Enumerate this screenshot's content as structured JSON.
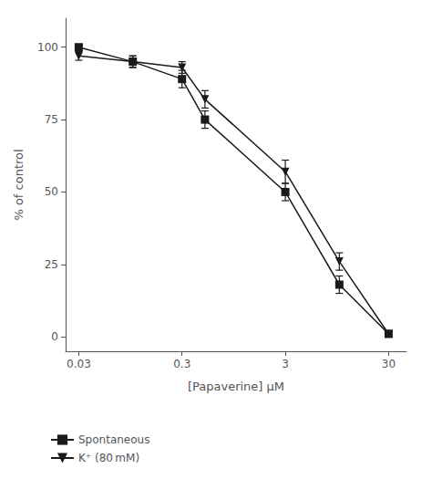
{
  "chart_data": {
    "type": "line",
    "xlabel": "[Papaverine] μM",
    "ylabel": "% of control",
    "log": "x",
    "xlim": [
      0.0223872113856834,
      44.668359215096324
    ],
    "xticks": [
      0.03,
      0.3,
      3,
      30
    ],
    "ylim": [
      -5,
      110
    ],
    "yticks": [
      0,
      25,
      50,
      75,
      100
    ],
    "grid": false,
    "legend": "bottom left",
    "x": [
      0.03,
      0.1,
      0.3,
      0.5,
      3,
      10,
      30
    ],
    "series": [
      {
        "name": "Spontaneous",
        "values": [
          100,
          95,
          89,
          75,
          50,
          18,
          1
        ],
        "yerr": [
          1,
          2,
          3,
          3,
          3,
          3,
          1
        ],
        "color": "#1a1a1a",
        "marker": "square"
      },
      {
        "name": "K⁺ (80 mM)",
        "values": [
          97,
          95,
          93,
          82,
          57,
          26,
          1
        ],
        "yerr": [
          1.5,
          2,
          2,
          3,
          4,
          3,
          1
        ],
        "color": "#1a1a1a",
        "marker": "triangle_down"
      }
    ]
  }
}
